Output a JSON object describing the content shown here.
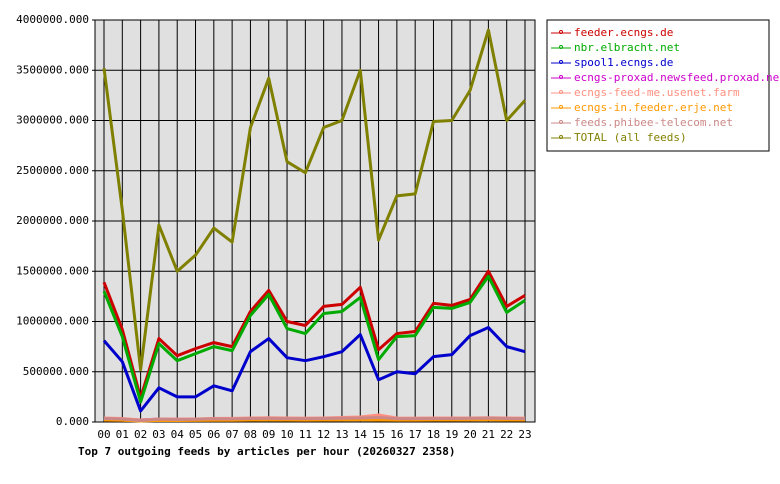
{
  "chart_data": {
    "type": "line",
    "title": "Top 7 outgoing feeds by articles per hour (20260327 2358)",
    "categories": [
      "00",
      "01",
      "02",
      "03",
      "04",
      "05",
      "06",
      "07",
      "08",
      "09",
      "10",
      "11",
      "12",
      "13",
      "14",
      "15",
      "16",
      "17",
      "18",
      "19",
      "20",
      "21",
      "22",
      "23"
    ],
    "ylim": [
      0,
      4000000
    ],
    "yticks": [
      {
        "value": 0,
        "label": "0.000"
      },
      {
        "value": 500000,
        "label": "500000.000"
      },
      {
        "value": 1000000,
        "label": "1000000.000"
      },
      {
        "value": 1500000,
        "label": "1500000.000"
      },
      {
        "value": 2000000,
        "label": "2000000.000"
      },
      {
        "value": 2500000,
        "label": "2500000.000"
      },
      {
        "value": 3000000,
        "label": "3000000.000"
      },
      {
        "value": 3500000,
        "label": "3500000.000"
      },
      {
        "value": 4000000,
        "label": "4000000.000"
      }
    ],
    "grid": true,
    "legend": "right",
    "series": [
      {
        "name": "feeder.ecngs.de",
        "color": "#cc0000",
        "values": [
          1390000,
          920000,
          240000,
          830000,
          660000,
          730000,
          790000,
          750000,
          1100000,
          1310000,
          1000000,
          960000,
          1150000,
          1170000,
          1340000,
          720000,
          880000,
          900000,
          1180000,
          1160000,
          1220000,
          1500000,
          1150000,
          1260000
        ]
      },
      {
        "name": "nbr.elbracht.net",
        "color": "#00aa00",
        "values": [
          1300000,
          850000,
          200000,
          780000,
          610000,
          680000,
          750000,
          710000,
          1060000,
          1270000,
          930000,
          880000,
          1080000,
          1100000,
          1240000,
          620000,
          850000,
          860000,
          1140000,
          1130000,
          1190000,
          1450000,
          1090000,
          1210000
        ]
      },
      {
        "name": "spool1.ecngs.de",
        "color": "#0000cc",
        "values": [
          810000,
          600000,
          110000,
          340000,
          250000,
          250000,
          360000,
          310000,
          700000,
          830000,
          640000,
          610000,
          650000,
          700000,
          870000,
          420000,
          500000,
          480000,
          650000,
          670000,
          860000,
          940000,
          750000,
          700000
        ]
      },
      {
        "name": "ecngs-proxad.newsfeed.proxad.net",
        "color": "#cc00cc",
        "values": [
          30000,
          28000,
          20000,
          28000,
          26000,
          27000,
          30000,
          29000,
          32000,
          33000,
          31000,
          30000,
          31000,
          32000,
          34000,
          30000,
          30000,
          30000,
          32000,
          32000,
          33000,
          34000,
          32000,
          31000
        ]
      },
      {
        "name": "ecngs-feed-me.usenet.farm",
        "color": "#ff9080",
        "values": [
          40000,
          35000,
          20000,
          30000,
          28000,
          30000,
          36000,
          36000,
          40000,
          42000,
          40000,
          38000,
          40000,
          45000,
          50000,
          70000,
          40000,
          38000,
          40000,
          40000,
          40000,
          42000,
          40000,
          38000
        ]
      },
      {
        "name": "ecngs-in.feeder.erje.net",
        "color": "#ff9900",
        "values": [
          20000,
          18000,
          10000,
          16000,
          15000,
          16000,
          18000,
          18000,
          20000,
          21000,
          20000,
          19000,
          20000,
          21000,
          22000,
          20000,
          19000,
          19000,
          20000,
          20000,
          21000,
          22000,
          20000,
          20000
        ]
      },
      {
        "name": "feeds.phibee-telecom.net",
        "color": "#cc8888",
        "values": [
          35000,
          30000,
          15000,
          28000,
          25000,
          27000,
          32000,
          31000,
          35000,
          36000,
          34000,
          33000,
          35000,
          37000,
          40000,
          45000,
          34000,
          33000,
          35000,
          35000,
          36000,
          38000,
          35000,
          34000
        ]
      },
      {
        "name": "TOTAL (all feeds)",
        "color": "#808000",
        "values": [
          3520000,
          2110000,
          520000,
          1960000,
          1500000,
          1660000,
          1930000,
          1790000,
          2930000,
          3420000,
          2590000,
          2480000,
          2930000,
          3000000,
          3500000,
          1810000,
          2250000,
          2270000,
          2990000,
          3000000,
          3300000,
          3900000,
          3000000,
          3200000
        ]
      }
    ]
  }
}
